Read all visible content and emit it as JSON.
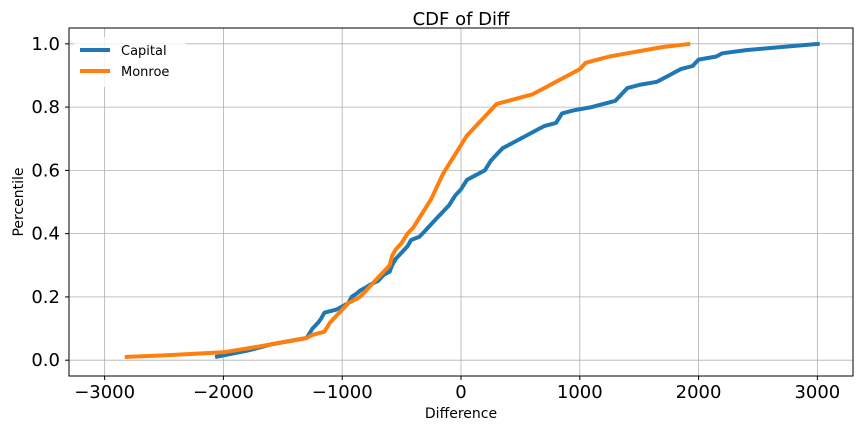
{
  "chart_data": {
    "type": "line",
    "title": "CDF of Diff",
    "xlabel": "Difference",
    "ylabel": "Percentile",
    "xlim": [
      -3300,
      3300
    ],
    "ylim": [
      -0.05,
      1.05
    ],
    "xticks": [
      -3000,
      -2000,
      -1000,
      0,
      1000,
      2000,
      3000
    ],
    "xtick_labels": [
      "−3000",
      "−2000",
      "−1000",
      "0",
      "1000",
      "2000",
      "3000"
    ],
    "yticks": [
      0.0,
      0.2,
      0.4,
      0.6,
      0.8,
      1.0
    ],
    "ytick_labels": [
      "0.0",
      "0.2",
      "0.4",
      "0.6",
      "0.8",
      "1.0"
    ],
    "grid": true,
    "legend_position": "top-left",
    "series": [
      {
        "name": "Capital",
        "color": "#1f77b4",
        "x": [
          -2070,
          -1800,
          -1600,
          -1300,
          -1250,
          -1200,
          -1180,
          -1150,
          -1050,
          -950,
          -920,
          -880,
          -850,
          -800,
          -760,
          -700,
          -650,
          -600,
          -580,
          -550,
          -500,
          -450,
          -420,
          -350,
          -300,
          -250,
          -200,
          -150,
          -100,
          -50,
          0,
          50,
          100,
          200,
          250,
          300,
          350,
          400,
          500,
          550,
          650,
          700,
          800,
          850,
          950,
          1100,
          1300,
          1350,
          1400,
          1500,
          1650,
          1700,
          1750,
          1800,
          1850,
          1950,
          2000,
          2150,
          2200,
          2400,
          2700,
          3020
        ],
        "y": [
          0.01,
          0.03,
          0.05,
          0.07,
          0.1,
          0.12,
          0.13,
          0.15,
          0.16,
          0.18,
          0.2,
          0.21,
          0.22,
          0.23,
          0.24,
          0.25,
          0.27,
          0.28,
          0.3,
          0.32,
          0.34,
          0.36,
          0.38,
          0.39,
          0.41,
          0.43,
          0.45,
          0.47,
          0.49,
          0.52,
          0.54,
          0.57,
          0.58,
          0.6,
          0.63,
          0.65,
          0.67,
          0.68,
          0.7,
          0.71,
          0.73,
          0.74,
          0.75,
          0.78,
          0.79,
          0.8,
          0.82,
          0.84,
          0.86,
          0.87,
          0.88,
          0.89,
          0.9,
          0.91,
          0.92,
          0.93,
          0.95,
          0.96,
          0.97,
          0.98,
          0.99,
          1.0
        ]
      },
      {
        "name": "Monroe",
        "color": "#ff7f0e",
        "x": [
          -2830,
          -2500,
          -2000,
          -1750,
          -1600,
          -1300,
          -1250,
          -1150,
          -1100,
          -1050,
          -1000,
          -950,
          -900,
          -850,
          -800,
          -750,
          -700,
          -650,
          -600,
          -580,
          -550,
          -500,
          -450,
          -400,
          -350,
          -300,
          -250,
          -200,
          -150,
          -100,
          -50,
          0,
          50,
          100,
          150,
          200,
          250,
          300,
          400,
          500,
          600,
          700,
          800,
          900,
          1000,
          1050,
          1150,
          1250,
          1400,
          1550,
          1700,
          1930
        ],
        "y": [
          0.01,
          0.015,
          0.025,
          0.04,
          0.05,
          0.07,
          0.08,
          0.09,
          0.12,
          0.14,
          0.16,
          0.18,
          0.19,
          0.2,
          0.22,
          0.24,
          0.26,
          0.28,
          0.3,
          0.33,
          0.35,
          0.37,
          0.4,
          0.42,
          0.45,
          0.48,
          0.51,
          0.55,
          0.59,
          0.62,
          0.65,
          0.68,
          0.71,
          0.73,
          0.75,
          0.77,
          0.79,
          0.81,
          0.82,
          0.83,
          0.84,
          0.86,
          0.88,
          0.9,
          0.92,
          0.94,
          0.95,
          0.96,
          0.97,
          0.98,
          0.99,
          1.0
        ]
      }
    ]
  }
}
